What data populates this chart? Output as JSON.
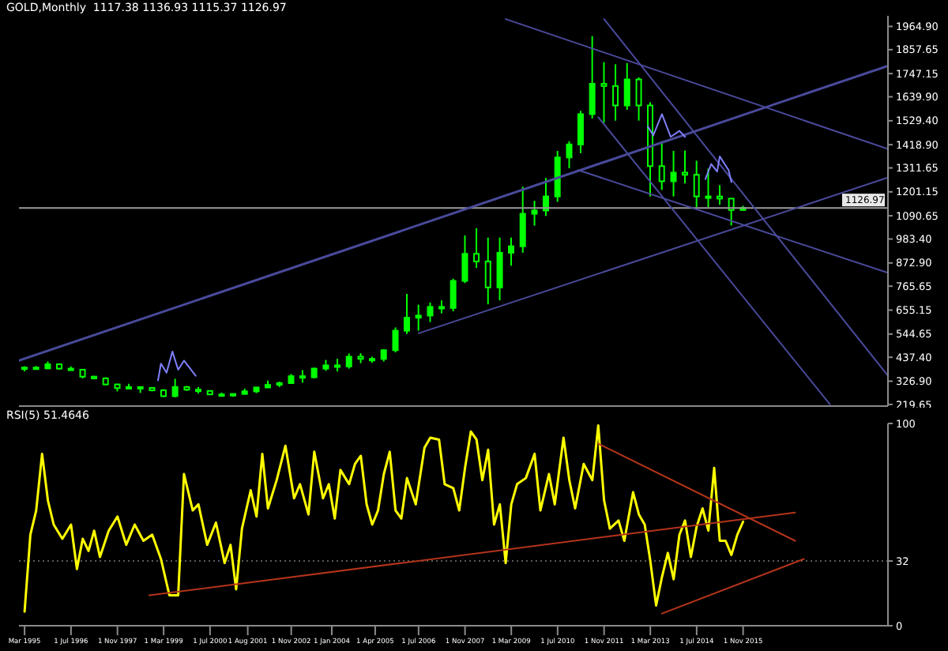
{
  "chart_data": [
    {
      "type": "candlestick",
      "title": "GOLD,Monthly  1117.38 1136.93 1115.37 1126.97",
      "color": "#00ff00",
      "x": [
        "1995-03",
        "1995-07",
        "1995-11",
        "1996-03",
        "1996-07",
        "1996-11",
        "1997-03",
        "1997-07",
        "1997-11",
        "1998-03",
        "1998-07",
        "1998-11",
        "1999-03",
        "1999-07",
        "1999-11",
        "2000-03",
        "2000-07",
        "2000-11",
        "2001-03",
        "2001-07",
        "2001-11",
        "2002-03",
        "2002-07",
        "2002-11",
        "2003-03",
        "2003-07",
        "2003-11",
        "2004-03",
        "2004-07",
        "2004-11",
        "2005-03",
        "2005-07",
        "2005-11",
        "2006-03",
        "2006-07",
        "2006-11",
        "2007-03",
        "2007-07",
        "2007-11",
        "2008-03",
        "2008-07",
        "2008-11",
        "2009-03",
        "2009-07",
        "2009-11",
        "2010-03",
        "2010-07",
        "2010-11",
        "2011-03",
        "2011-07",
        "2011-11",
        "2012-03",
        "2012-07",
        "2012-11",
        "2013-03",
        "2013-07",
        "2013-11",
        "2014-03",
        "2014-07",
        "2014-11",
        "2015-03",
        "2015-07",
        "2015-11"
      ],
      "ohlc": [
        [
          385,
          396,
          372,
          390
        ],
        [
          390,
          397,
          380,
          386
        ],
        [
          386,
          418,
          383,
          405
        ],
        [
          405,
          408,
          380,
          385
        ],
        [
          385,
          395,
          376,
          380
        ],
        [
          380,
          382,
          340,
          348
        ],
        [
          348,
          352,
          335,
          340
        ],
        [
          340,
          345,
          308,
          312
        ],
        [
          312,
          315,
          280,
          295
        ],
        [
          295,
          315,
          292,
          300
        ],
        [
          300,
          303,
          273,
          296
        ],
        [
          296,
          300,
          280,
          285
        ],
        [
          285,
          290,
          253,
          258
        ],
        [
          258,
          338,
          252,
          300
        ],
        [
          300,
          305,
          282,
          288
        ],
        [
          288,
          300,
          270,
          282
        ],
        [
          282,
          285,
          264,
          266
        ],
        [
          266,
          274,
          256,
          265
        ],
        [
          265,
          270,
          255,
          268
        ],
        [
          268,
          293,
          265,
          280
        ],
        [
          280,
          300,
          272,
          298
        ],
        [
          298,
          330,
          295,
          310
        ],
        [
          310,
          325,
          300,
          318
        ],
        [
          318,
          360,
          315,
          350
        ],
        [
          350,
          378,
          320,
          345
        ],
        [
          345,
          390,
          340,
          385
        ],
        [
          385,
          425,
          375,
          400
        ],
        [
          400,
          430,
          372,
          395
        ],
        [
          395,
          455,
          385,
          440
        ],
        [
          440,
          456,
          410,
          430
        ],
        [
          430,
          440,
          412,
          430
        ],
        [
          430,
          475,
          418,
          470
        ],
        [
          470,
          575,
          460,
          560
        ],
        [
          560,
          730,
          545,
          620
        ],
        [
          620,
          680,
          560,
          630
        ],
        [
          630,
          690,
          600,
          670
        ],
        [
          670,
          700,
          640,
          665
        ],
        [
          665,
          800,
          650,
          790
        ],
        [
          790,
          1000,
          780,
          915
        ],
        [
          915,
          1033,
          850,
          880
        ],
        [
          880,
          990,
          682,
          760
        ],
        [
          760,
          990,
          700,
          920
        ],
        [
          920,
          990,
          860,
          950
        ],
        [
          950,
          1225,
          920,
          1100
        ],
        [
          1100,
          1160,
          1045,
          1115
        ],
        [
          1115,
          1265,
          1090,
          1180
        ],
        [
          1180,
          1390,
          1155,
          1360
        ],
        [
          1360,
          1435,
          1310,
          1420
        ],
        [
          1420,
          1575,
          1380,
          1560
        ],
        [
          1560,
          1920,
          1540,
          1700
        ],
        [
          1700,
          1800,
          1520,
          1690
        ],
        [
          1690,
          1790,
          1530,
          1600
        ],
        [
          1600,
          1795,
          1580,
          1720
        ],
        [
          1720,
          1730,
          1530,
          1600
        ],
        [
          1600,
          1615,
          1180,
          1320
        ],
        [
          1320,
          1435,
          1210,
          1250
        ],
        [
          1250,
          1390,
          1180,
          1290
        ],
        [
          1290,
          1392,
          1240,
          1280
        ],
        [
          1280,
          1345,
          1130,
          1180
        ],
        [
          1180,
          1308,
          1130,
          1180
        ],
        [
          1180,
          1232,
          1142,
          1170
        ],
        [
          1170,
          1170,
          1046,
          1117.38
        ],
        [
          1117.38,
          1136.93,
          1115.37,
          1126.97
        ]
      ],
      "xlim": [
        "1995-01",
        "2020-01"
      ],
      "ylim": [
        212,
        2014
      ],
      "yticks": [
        {
          "value": 1964.9,
          "label": "1964.90"
        },
        {
          "value": 1857.65,
          "label": "1857.65"
        },
        {
          "value": 1747.15,
          "label": "1747.15"
        },
        {
          "value": 1639.9,
          "label": "1639.90"
        },
        {
          "value": 1529.4,
          "label": "1529.40"
        },
        {
          "value": 1418.9,
          "label": "1418.90"
        },
        {
          "value": 1311.65,
          "label": "1311.65"
        },
        {
          "value": 1201.15,
          "label": "1201.15"
        },
        {
          "value": 1090.65,
          "label": "1090.65"
        },
        {
          "value": 983.4,
          "label": "983.40"
        },
        {
          "value": 872.9,
          "label": "872.90"
        },
        {
          "value": 765.65,
          "label": "765.65"
        },
        {
          "value": 655.15,
          "label": "655.15"
        },
        {
          "value": 544.65,
          "label": "544.65"
        },
        {
          "value": 437.4,
          "label": "437.40"
        },
        {
          "value": 326.9,
          "label": "326.90"
        },
        {
          "value": 219.65,
          "label": "219.65"
        }
      ],
      "tick_labels": "y",
      "ref_lines": [
        {
          "axis": "y",
          "value": 1126.97,
          "label": "1126.97",
          "color": "#9a9a9a"
        }
      ],
      "series": [
        {
          "type": "line",
          "color": "#4a4a9c",
          "x": [
            "1995-01",
            "2020-01"
          ],
          "values": [
            422,
            1783
          ]
        },
        {
          "type": "line",
          "color": "#4a4a9c",
          "x": [
            "2006-07",
            "2020-01"
          ],
          "values": [
            548,
            1267
          ]
        },
        {
          "type": "line",
          "color": "#4a4a9c",
          "x": [
            "2009-01",
            "2020-01"
          ],
          "values": [
            1999,
            1399
          ]
        },
        {
          "type": "line",
          "color": "#4a4a9c",
          "x": [
            "2011-11",
            "2020-01"
          ],
          "values": [
            1999,
            352
          ]
        },
        {
          "type": "line",
          "color": "#4a4a9c",
          "x": [
            "2011-09",
            "2018-05"
          ],
          "values": [
            1546,
            220
          ]
        },
        {
          "type": "line",
          "color": "#4a4a9c",
          "x": [
            "2011-02",
            "2020-01"
          ],
          "values": [
            1302,
            827
          ]
        },
        {
          "type": "line",
          "color": "#8080ff",
          "x": [
            "1999-01",
            "1999-02",
            "1999-04",
            "1999-06",
            "1999-08",
            "1999-10",
            "2000-02"
          ],
          "values": [
            331,
            408,
            366,
            464,
            380,
            422,
            352
          ]
        },
        {
          "type": "line",
          "color": "#8080ff",
          "x": [
            "2013-02",
            "2013-04",
            "2013-07",
            "2013-10",
            "2014-01",
            "2014-03"
          ],
          "values": [
            1504,
            1462,
            1560,
            1455,
            1483,
            1455
          ]
        },
        {
          "type": "line",
          "color": "#8080ff",
          "x": [
            "2014-10",
            "2014-12",
            "2015-02",
            "2015-03",
            "2015-06",
            "2015-07"
          ],
          "values": [
            1260,
            1330,
            1295,
            1365,
            1302,
            1246
          ]
        }
      ]
    },
    {
      "type": "line",
      "title": "RSI(5) 51.4646",
      "xlim": [
        "1995-01",
        "2020-01"
      ],
      "ylim": [
        0,
        100
      ],
      "yticks": [
        0,
        32,
        100
      ],
      "xticks": [
        {
          "value": "1995-03",
          "label": "Mar 1995"
        },
        {
          "value": "1996-07",
          "label": "1 Jul 1996"
        },
        {
          "value": "1997-11",
          "label": "1 Nov 1997"
        },
        {
          "value": "1999-03",
          "label": "1 Mar 1999"
        },
        {
          "value": "2000-07",
          "label": "1 Jul 2000"
        },
        {
          "value": "2001-08",
          "label": "1 Aug 2001"
        },
        {
          "value": "2002-11",
          "label": "1 Nov 2002"
        },
        {
          "value": "2004-01",
          "label": "1 Jan 2004"
        },
        {
          "value": "2005-04",
          "label": "1 Apr 2005"
        },
        {
          "value": "2006-07",
          "label": "1 Jul 2006"
        },
        {
          "value": "2007-11",
          "label": "1 Nov 2007"
        },
        {
          "value": "2009-03",
          "label": "1 Mar 2009"
        },
        {
          "value": "2010-07",
          "label": "1 Jul 2010"
        },
        {
          "value": "2011-11",
          "label": "1 Nov 2011"
        },
        {
          "value": "2013-03",
          "label": "1 Mar 2013"
        },
        {
          "value": "2014-07",
          "label": "1 Jul 2014"
        },
        {
          "value": "2015-11",
          "label": "1 Nov 2015"
        }
      ],
      "ref_lines": [
        {
          "axis": "y",
          "value": 32,
          "color": "#5a5a5a",
          "line_style": "dotted"
        }
      ],
      "series": [
        {
          "color": "#ffff00",
          "x": [
            "1995-03",
            "1995-05",
            "1995-07",
            "1995-09",
            "1995-11",
            "1996-01",
            "1996-04",
            "1996-07",
            "1996-09",
            "1996-11",
            "1997-01",
            "1997-03",
            "1997-05",
            "1997-08",
            "1997-11",
            "1998-02",
            "1998-05",
            "1998-08",
            "1998-11",
            "1999-02",
            "1999-05",
            "1999-08",
            "1999-10",
            "2000-01",
            "2000-03",
            "2000-06",
            "2000-09",
            "2000-12",
            "2001-02",
            "2001-04",
            "2001-06",
            "2001-09",
            "2001-11",
            "2002-01",
            "2002-03",
            "2002-06",
            "2002-09",
            "2002-12",
            "2003-02",
            "2003-05",
            "2003-07",
            "2003-10",
            "2003-12",
            "2004-02",
            "2004-04",
            "2004-07",
            "2004-09",
            "2004-11",
            "2005-01",
            "2005-03",
            "2005-05",
            "2005-07",
            "2005-09",
            "2005-11",
            "2006-01",
            "2006-03",
            "2006-06",
            "2006-09",
            "2006-11",
            "2007-02",
            "2007-04",
            "2007-07",
            "2007-09",
            "2007-11",
            "2008-01",
            "2008-03",
            "2008-05",
            "2008-07",
            "2008-09",
            "2008-11",
            "2009-01",
            "2009-03",
            "2009-05",
            "2009-08",
            "2009-11",
            "2010-01",
            "2010-04",
            "2010-06",
            "2010-09",
            "2010-11",
            "2011-01",
            "2011-04",
            "2011-07",
            "2011-09",
            "2011-11",
            "2012-01",
            "2012-04",
            "2012-06",
            "2012-09",
            "2012-11",
            "2013-01",
            "2013-03",
            "2013-05",
            "2013-07",
            "2013-09",
            "2013-11",
            "2014-01",
            "2014-03",
            "2014-05",
            "2014-07",
            "2014-09",
            "2014-11",
            "2015-01",
            "2015-03",
            "2015-05",
            "2015-07",
            "2015-09",
            "2015-11"
          ],
          "values": [
            7,
            45,
            57,
            85,
            62,
            50,
            43,
            50,
            28,
            43,
            37,
            47,
            34,
            47,
            54,
            40,
            50,
            42,
            45,
            33,
            15,
            15,
            75,
            57,
            60,
            40,
            51,
            31,
            40,
            18,
            48,
            67,
            54,
            85,
            58,
            72,
            89,
            63,
            70,
            55,
            86,
            63,
            70,
            53,
            77,
            70,
            80,
            84,
            60,
            50,
            57,
            75,
            86,
            57,
            53,
            73,
            60,
            88,
            93,
            92,
            70,
            68,
            57,
            78,
            96,
            92,
            72,
            87,
            50,
            60,
            31,
            60,
            70,
            73,
            85,
            57,
            75,
            60,
            93,
            72,
            58,
            80,
            72,
            99,
            62,
            48,
            52,
            42,
            66,
            55,
            50,
            32,
            10,
            24,
            36,
            23,
            45,
            52,
            34,
            49,
            58,
            47,
            78,
            42,
            42,
            35,
            45,
            51.4646
          ]
        },
        {
          "type": "line",
          "color": "#b3341a",
          "x": [
            "1998-10",
            "2017-05"
          ],
          "values": [
            15,
            56
          ]
        },
        {
          "type": "line",
          "color": "#b3341a",
          "x": [
            "2011-09",
            "2017-05"
          ],
          "values": [
            90,
            42
          ]
        },
        {
          "type": "line",
          "color": "#b3341a",
          "x": [
            "2013-07",
            "2017-08"
          ],
          "values": [
            6,
            33
          ]
        }
      ]
    }
  ]
}
